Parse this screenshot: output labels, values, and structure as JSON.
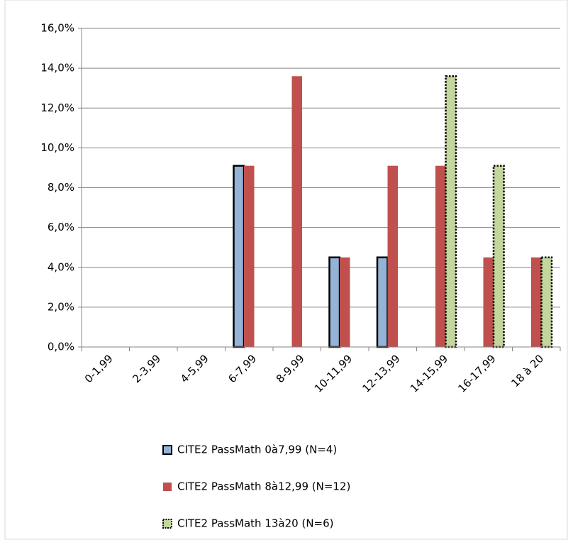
{
  "chart_data": {
    "type": "bar",
    "categories": [
      "0-1,99",
      "2-3,99",
      "4-5,99",
      "6-7,99",
      "8-9,99",
      "10-11,99",
      "12-13,99",
      "14-15,99",
      "16-17,99",
      "18 à 20"
    ],
    "series": [
      {
        "name": "CITE2 PassMath 0à7,99 (N=4)",
        "color": "#95b3d7",
        "edgecolor": "#000000",
        "linestyle": "solid",
        "values": [
          0,
          0,
          0,
          9.1,
          0,
          4.5,
          4.5,
          0,
          0,
          0
        ]
      },
      {
        "name": "CITE2 PassMath 8à12,99 (N=12)",
        "color": "#c0504d",
        "edgecolor": "none",
        "linestyle": "solid",
        "values": [
          0,
          0,
          0,
          9.1,
          13.6,
          4.5,
          9.1,
          9.1,
          4.5,
          4.5
        ]
      },
      {
        "name": "CITE2 PassMath 13à20 (N=6)",
        "color": "#c3d69b",
        "edgecolor": "#000000",
        "linestyle": "dotted",
        "values": [
          0,
          0,
          0,
          0,
          0,
          0,
          0,
          13.6,
          9.1,
          4.5
        ]
      }
    ],
    "ylim": [
      0,
      16
    ],
    "yticks": [
      {
        "value": 0,
        "label": "0,0%"
      },
      {
        "value": 2,
        "label": "2,0%"
      },
      {
        "value": 4,
        "label": "4,0%"
      },
      {
        "value": 6,
        "label": "6,0%"
      },
      {
        "value": 8,
        "label": "8,0%"
      },
      {
        "value": 10,
        "label": "10,0%"
      },
      {
        "value": 12,
        "label": "12,0%"
      },
      {
        "value": 14,
        "label": "14,0%"
      },
      {
        "value": 16,
        "label": "16,0%"
      }
    ],
    "grid": true,
    "legend": "bottom"
  }
}
